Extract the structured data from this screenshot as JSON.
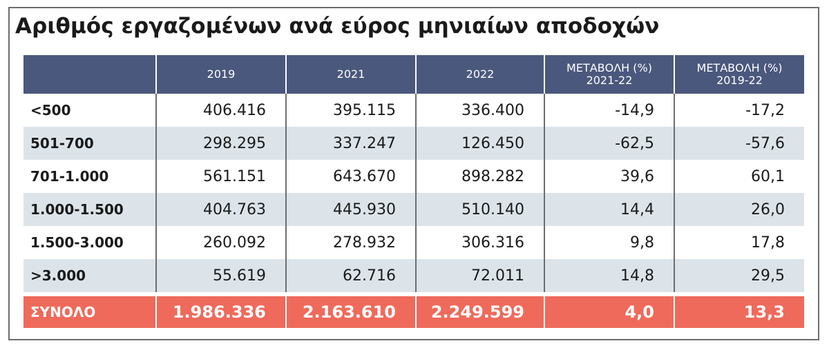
{
  "title": "Αριθμός εργαζομένων ανά εύρος μηνιαίων αποδοχών",
  "chart_data": {
    "type": "table",
    "title": "Αριθμός εργαζομένων ανά εύρος μηνιαίων αποδοχών",
    "columns": [
      "",
      "2019",
      "2021",
      "2022",
      "ΜΕΤΑΒΟΛΗ (%)\n2021-22",
      "ΜΕΤΑΒΟΛΗ (%)\n2019-22"
    ],
    "header": {
      "c1": "2019",
      "c2": "2021",
      "c3": "2022",
      "c4_line1": "ΜΕΤΑΒΟΛΗ (%)",
      "c4_line2": "2021-22",
      "c5_line1": "ΜΕΤΑΒΟΛΗ (%)",
      "c5_line2": "2019-22"
    },
    "rows": [
      {
        "label": "<500",
        "y2019": "406.416",
        "y2021": "395.115",
        "y2022": "336.400",
        "chg_21_22": "-14,9",
        "chg_19_22": "-17,2"
      },
      {
        "label": "501-700",
        "y2019": "298.295",
        "y2021": "337.247",
        "y2022": "126.450",
        "chg_21_22": "-62,5",
        "chg_19_22": "-57,6"
      },
      {
        "label": "701-1.000",
        "y2019": "561.151",
        "y2021": "643.670",
        "y2022": "898.282",
        "chg_21_22": "39,6",
        "chg_19_22": "60,1"
      },
      {
        "label": "1.000-1.500",
        "y2019": "404.763",
        "y2021": "445.930",
        "y2022": "510.140",
        "chg_21_22": "14,4",
        "chg_19_22": "26,0"
      },
      {
        "label": "1.500-3.000",
        "y2019": "260.092",
        "y2021": "278.932",
        "y2022": "306.316",
        "chg_21_22": "9,8",
        "chg_19_22": "17,8"
      },
      {
        "label": ">3.000",
        "y2019": "55.619",
        "y2021": "62.716",
        "y2022": "72.011",
        "chg_21_22": "14,8",
        "chg_19_22": "29,5"
      }
    ],
    "total": {
      "label": "ΣΥΝΟΛΟ",
      "y2019": "1.986.336",
      "y2021": "2.163.610",
      "y2022": "2.249.599",
      "chg_21_22": "4,0",
      "chg_19_22": "13,3"
    }
  },
  "colors": {
    "header_bg": "#4b587d",
    "band_bg": "#dce4ea",
    "total_bg": "#ef6a5b"
  }
}
